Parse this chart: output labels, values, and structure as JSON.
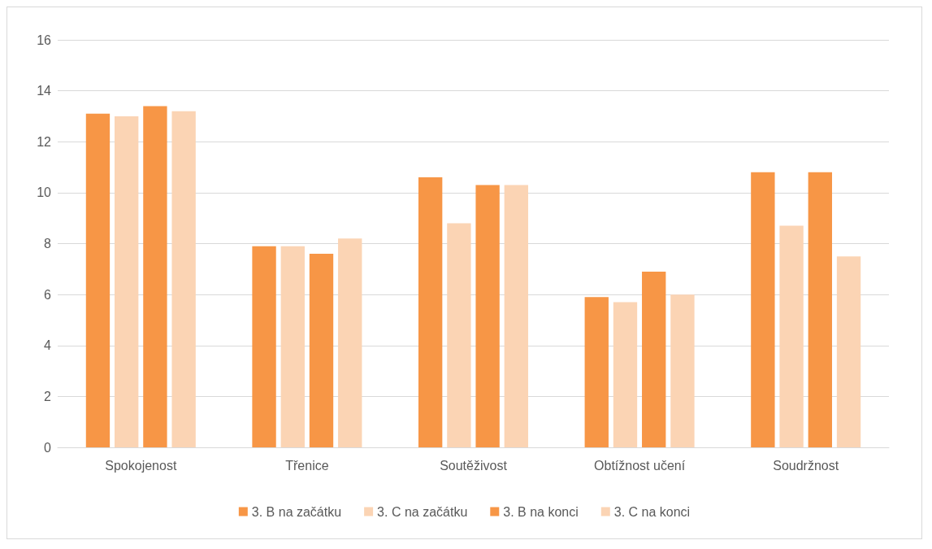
{
  "chart_data": {
    "type": "bar",
    "categories": [
      "Spokojenost",
      "Třenice",
      "Soutěživost",
      "Obtížnost učení",
      "Soudržnost"
    ],
    "series": [
      {
        "name": "3. B na začátku",
        "color": "#f79646",
        "values": [
          13.1,
          7.9,
          10.6,
          5.9,
          10.8
        ]
      },
      {
        "name": "3. C na začátku",
        "color": "#fbd4b4",
        "values": [
          13.0,
          7.9,
          8.8,
          5.7,
          8.7
        ]
      },
      {
        "name": "3. B na konci",
        "color": "#f79646",
        "values": [
          13.4,
          7.6,
          10.3,
          6.9,
          10.8
        ]
      },
      {
        "name": "3. C na konci",
        "color": "#fbd4b4",
        "values": [
          13.2,
          8.2,
          10.3,
          6.0,
          7.5
        ]
      }
    ],
    "ylim": [
      0,
      16
    ],
    "yticks": [
      0,
      2,
      4,
      6,
      8,
      10,
      12,
      14,
      16
    ],
    "grid": "y",
    "legend": "bottom"
  }
}
